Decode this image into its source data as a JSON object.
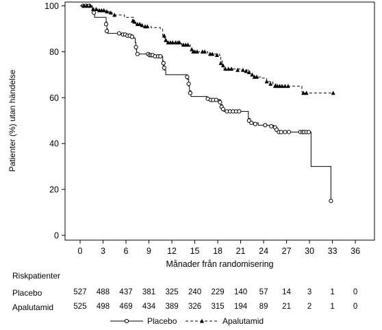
{
  "chart_data": {
    "type": "line",
    "title": "",
    "xlabel": "Månader från randomisering",
    "ylabel": "Patienter (%) utan händelse",
    "xlim": [
      0,
      36
    ],
    "ylim": [
      0,
      100
    ],
    "x_ticks": [
      "0",
      "3",
      "6",
      "9",
      "12",
      "15",
      "18",
      "21",
      "24",
      "27",
      "30",
      "33",
      "36"
    ],
    "y_ticks": [
      "0",
      "20",
      "40",
      "60",
      "80",
      "100"
    ],
    "grid": false,
    "legend_position": "bottom",
    "series": [
      {
        "name": "Placebo",
        "line_style": "solid",
        "marker": "open-circle",
        "step": [
          [
            0,
            100
          ],
          [
            1.6,
            99
          ],
          [
            1.8,
            98
          ],
          [
            1.9,
            95
          ],
          [
            3.3,
            95
          ],
          [
            3.4,
            93
          ],
          [
            3.5,
            90
          ],
          [
            3.6,
            88
          ],
          [
            5.3,
            88
          ],
          [
            5.4,
            87.5
          ],
          [
            6.8,
            87
          ],
          [
            7.0,
            86
          ],
          [
            7.2,
            84
          ],
          [
            7.3,
            81
          ],
          [
            7.4,
            79
          ],
          [
            8.8,
            79
          ],
          [
            9.0,
            78.5
          ],
          [
            10.6,
            78
          ],
          [
            10.8,
            76
          ],
          [
            10.9,
            74
          ],
          [
            11.0,
            72
          ],
          [
            11.2,
            70
          ],
          [
            13.8,
            70
          ],
          [
            14.0,
            68
          ],
          [
            14.2,
            65
          ],
          [
            14.3,
            63
          ],
          [
            14.5,
            60.5
          ],
          [
            16.6,
            60
          ],
          [
            16.8,
            59.2
          ],
          [
            18.2,
            59
          ],
          [
            18.4,
            57
          ],
          [
            18.6,
            55
          ],
          [
            18.8,
            54
          ],
          [
            21.8,
            54
          ],
          [
            22.0,
            51
          ],
          [
            22.2,
            49
          ],
          [
            23.3,
            48
          ],
          [
            25.3,
            47.5
          ],
          [
            25.6,
            46.5
          ],
          [
            25.8,
            45.5
          ],
          [
            26.0,
            45
          ],
          [
            30.2,
            45
          ],
          [
            30.2,
            30
          ],
          [
            32.8,
            30
          ],
          [
            32.8,
            15
          ]
        ],
        "censor": [
          [
            0.4,
            100
          ],
          [
            0.8,
            100
          ],
          [
            1.2,
            100
          ],
          [
            1.8,
            97
          ],
          [
            3.4,
            92
          ],
          [
            3.5,
            89
          ],
          [
            5.1,
            88
          ],
          [
            5.6,
            87.5
          ],
          [
            5.9,
            87.5
          ],
          [
            6.2,
            87
          ],
          [
            6.5,
            87
          ],
          [
            6.8,
            86.5
          ],
          [
            7.3,
            82
          ],
          [
            7.5,
            79
          ],
          [
            8.9,
            79
          ],
          [
            9.1,
            78.5
          ],
          [
            9.3,
            78.5
          ],
          [
            9.5,
            78.5
          ],
          [
            9.8,
            78
          ],
          [
            10.2,
            78
          ],
          [
            10.5,
            78
          ],
          [
            10.9,
            75
          ],
          [
            11.0,
            73
          ],
          [
            14.0,
            69
          ],
          [
            14.2,
            66
          ],
          [
            14.4,
            62
          ],
          [
            16.7,
            59.5
          ],
          [
            17.1,
            59
          ],
          [
            17.4,
            59
          ],
          [
            17.8,
            59
          ],
          [
            18.3,
            58
          ],
          [
            18.5,
            56
          ],
          [
            18.7,
            55
          ],
          [
            19.2,
            54
          ],
          [
            19.6,
            54
          ],
          [
            20.0,
            54
          ],
          [
            20.4,
            54
          ],
          [
            20.8,
            54
          ],
          [
            22.1,
            50
          ],
          [
            22.4,
            49
          ],
          [
            22.9,
            48.5
          ],
          [
            24.2,
            48
          ],
          [
            25.0,
            47.5
          ],
          [
            25.5,
            47
          ],
          [
            25.7,
            46
          ],
          [
            26.0,
            45
          ],
          [
            26.3,
            45
          ],
          [
            26.8,
            45
          ],
          [
            27.3,
            45
          ],
          [
            28.8,
            45
          ],
          [
            29.1,
            45
          ],
          [
            29.3,
            45
          ],
          [
            29.6,
            45
          ],
          [
            29.9,
            45
          ],
          [
            32.8,
            15
          ]
        ]
      },
      {
        "name": "Apalutamid",
        "line_style": "dashed",
        "marker": "filled-triangle",
        "step": [
          [
            0,
            100
          ],
          [
            1.5,
            99.5
          ],
          [
            1.6,
            98.5
          ],
          [
            2.3,
            98
          ],
          [
            3.3,
            97.5
          ],
          [
            3.8,
            97
          ],
          [
            4.2,
            96
          ],
          [
            5.8,
            95
          ],
          [
            7.0,
            93
          ],
          [
            7.3,
            92
          ],
          [
            8.2,
            91
          ],
          [
            9.3,
            90.5
          ],
          [
            10.5,
            90
          ],
          [
            10.8,
            87
          ],
          [
            11.0,
            86
          ],
          [
            11.3,
            84
          ],
          [
            12.8,
            84
          ],
          [
            13.3,
            83
          ],
          [
            14.4,
            81.5
          ],
          [
            14.6,
            80
          ],
          [
            16.7,
            79
          ],
          [
            18.2,
            78.5
          ],
          [
            18.4,
            76
          ],
          [
            18.6,
            74
          ],
          [
            18.8,
            72.5
          ],
          [
            20.3,
            72.5
          ],
          [
            21.0,
            72
          ],
          [
            22.2,
            70
          ],
          [
            22.6,
            69
          ],
          [
            23.7,
            68.5
          ],
          [
            24.4,
            67
          ],
          [
            25.2,
            66
          ],
          [
            25.6,
            65
          ],
          [
            28.5,
            65
          ],
          [
            29.0,
            62.5
          ],
          [
            29.2,
            62
          ],
          [
            33.1,
            62
          ]
        ],
        "censor": [
          [
            0.5,
            100
          ],
          [
            0.9,
            100
          ],
          [
            1.3,
            100
          ],
          [
            1.7,
            98.5
          ],
          [
            2.1,
            98.5
          ],
          [
            2.5,
            98
          ],
          [
            2.8,
            98
          ],
          [
            3.1,
            98
          ],
          [
            3.5,
            97.5
          ],
          [
            4.0,
            97
          ],
          [
            4.5,
            96
          ],
          [
            6.9,
            93.5
          ],
          [
            7.1,
            93
          ],
          [
            7.5,
            92
          ],
          [
            7.8,
            92
          ],
          [
            8.1,
            91.5
          ],
          [
            8.5,
            91
          ],
          [
            8.8,
            91
          ],
          [
            11.0,
            87
          ],
          [
            11.2,
            85
          ],
          [
            11.5,
            84
          ],
          [
            11.8,
            84
          ],
          [
            12.1,
            84
          ],
          [
            12.5,
            84
          ],
          [
            12.8,
            84
          ],
          [
            13.0,
            84
          ],
          [
            13.5,
            83
          ],
          [
            13.8,
            83
          ],
          [
            14.1,
            83
          ],
          [
            14.6,
            81
          ],
          [
            14.8,
            80
          ],
          [
            15.0,
            80
          ],
          [
            15.3,
            80
          ],
          [
            16.0,
            80
          ],
          [
            16.3,
            80
          ],
          [
            17.0,
            79
          ],
          [
            17.3,
            79
          ],
          [
            17.9,
            78.5
          ],
          [
            18.4,
            75
          ],
          [
            18.7,
            74
          ],
          [
            19.0,
            72.5
          ],
          [
            19.4,
            72.5
          ],
          [
            19.8,
            72.5
          ],
          [
            20.6,
            72
          ],
          [
            21.3,
            72
          ],
          [
            21.7,
            71.5
          ],
          [
            22.1,
            71
          ],
          [
            22.5,
            70
          ],
          [
            22.8,
            69
          ],
          [
            23.1,
            69
          ],
          [
            24.4,
            67
          ],
          [
            24.9,
            66
          ],
          [
            25.5,
            65
          ],
          [
            25.8,
            65
          ],
          [
            26.1,
            65
          ],
          [
            26.4,
            65
          ],
          [
            26.8,
            65
          ],
          [
            27.2,
            65
          ],
          [
            29.2,
            62
          ],
          [
            29.6,
            62
          ],
          [
            33.1,
            62
          ]
        ]
      }
    ]
  },
  "risk_table": {
    "title": "Riskpatienter",
    "rows": [
      {
        "label": "Placebo",
        "values": [
          "527",
          "488",
          "437",
          "381",
          "325",
          "240",
          "229",
          "140",
          "57",
          "14",
          "3",
          "1",
          "0"
        ]
      },
      {
        "label": "Apalutamid",
        "values": [
          "525",
          "498",
          "469",
          "434",
          "389",
          "326",
          "315",
          "194",
          "89",
          "21",
          "2",
          "1",
          "0"
        ]
      }
    ]
  },
  "legend": {
    "items": [
      {
        "label": "Placebo"
      },
      {
        "label": "Apalutamid"
      }
    ]
  }
}
